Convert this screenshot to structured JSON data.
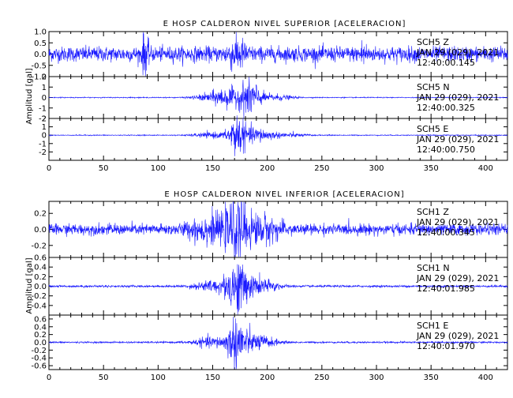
{
  "chart_data": [
    {
      "type": "line",
      "title": "E HOSP CALDERON NIVEL SUPERIOR [ACELERACION]",
      "xlabel": "",
      "ylabel": "Amplitud [gal]",
      "xlim": [
        0,
        420
      ],
      "x_ticks": [
        0,
        50,
        100,
        150,
        200,
        250,
        300,
        350,
        400
      ],
      "x_tick_labels": [
        "0",
        "50",
        "100",
        "150",
        "200",
        "250",
        "300",
        "350",
        "400"
      ],
      "grid": false,
      "series": [
        {
          "name": "SCH5 Z",
          "channel": "SCH5",
          "component": "Z",
          "date": "JAN 29 (029), 2021",
          "time": "12:40:00.145",
          "color": "#1a1aff",
          "ylim": [
            -1.0,
            1.0
          ],
          "y_ticks": [
            -1.0,
            -0.5,
            0.0,
            0.5,
            1.0
          ],
          "y_tick_labels": [
            "-1.0",
            "-0.5",
            "0.0",
            "0.5",
            "1.0"
          ],
          "noise": 0.3,
          "events": [
            {
              "center": 88,
              "width": 2,
              "amp": 0.8
            },
            {
              "center": 172,
              "width": 6,
              "amp": 0.5
            },
            {
              "center": 288,
              "width": 2,
              "amp": 0.45
            }
          ]
        },
        {
          "name": "SCH5 N",
          "channel": "SCH5",
          "component": "N",
          "date": "JAN 29 (029), 2021",
          "time": "12:40:00.325",
          "color": "#1a1aff",
          "ylim": [
            -2,
            2
          ],
          "y_ticks": [
            -2,
            -1,
            0,
            1,
            2
          ],
          "y_tick_labels": [
            "-2",
            "-1",
            "0",
            "1",
            "2"
          ],
          "noise": 0.04,
          "events": [
            {
              "center": 150,
              "width": 12,
              "amp": 0.35
            },
            {
              "center": 165,
              "width": 9,
              "amp": 0.7
            },
            {
              "center": 184,
              "width": 6,
              "amp": 1.7
            },
            {
              "center": 205,
              "width": 12,
              "amp": 0.3
            }
          ]
        },
        {
          "name": "SCH5 E",
          "channel": "SCH5",
          "component": "E",
          "date": "JAN 29 (029), 2021",
          "time": "12:40:00.750",
          "color": "#1a1aff",
          "ylim": [
            -3,
            2
          ],
          "y_ticks": [
            -2,
            -1,
            0,
            1,
            2
          ],
          "y_tick_labels": [
            "-2",
            "-1",
            "0",
            "1",
            "2"
          ],
          "noise": 0.05,
          "events": [
            {
              "center": 150,
              "width": 12,
              "amp": 0.3
            },
            {
              "center": 172,
              "width": 5,
              "amp": 2.1
            },
            {
              "center": 188,
              "width": 10,
              "amp": 0.8
            },
            {
              "center": 215,
              "width": 14,
              "amp": 0.25
            }
          ]
        }
      ]
    },
    {
      "type": "line",
      "title": "E HOSP CALDERON NIVEL INFERIOR [ACELERACION]",
      "xlabel": "",
      "ylabel": "Amplitud [gal]",
      "xlim": [
        0,
        420
      ],
      "x_ticks": [
        0,
        50,
        100,
        150,
        200,
        250,
        300,
        350,
        400
      ],
      "x_tick_labels": [
        "0",
        "50",
        "100",
        "150",
        "200",
        "250",
        "300",
        "350",
        "400"
      ],
      "grid": false,
      "series": [
        {
          "name": "SCH1 Z",
          "channel": "SCH1",
          "component": "Z",
          "date": "JAN 29 (029), 2021",
          "time": "12:40:00.345",
          "color": "#1a1aff",
          "ylim": [
            -0.35,
            0.35
          ],
          "y_ticks": [
            -0.2,
            0.0,
            0.2
          ],
          "y_tick_labels": [
            "-0.2",
            "0.0",
            "0.2"
          ],
          "noise": 0.06,
          "events": [
            {
              "center": 145,
              "width": 12,
              "amp": 0.12
            },
            {
              "center": 172,
              "width": 8,
              "amp": 0.28
            },
            {
              "center": 195,
              "width": 12,
              "amp": 0.12
            }
          ]
        },
        {
          "name": "SCH1 N",
          "channel": "SCH1",
          "component": "N",
          "date": "JAN 29 (029), 2021",
          "time": "12:40:01.985",
          "color": "#1a1aff",
          "ylim": [
            -0.6,
            0.6
          ],
          "y_ticks": [
            -0.4,
            -0.2,
            0.0,
            0.2,
            0.4,
            0.6
          ],
          "y_tick_labels": [
            "-0.4",
            "-0.2",
            "0.0",
            "0.2",
            "0.4",
            "0.6"
          ],
          "noise": 0.02,
          "events": [
            {
              "center": 150,
              "width": 12,
              "amp": 0.1
            },
            {
              "center": 172,
              "width": 7,
              "amp": 0.45
            },
            {
              "center": 192,
              "width": 12,
              "amp": 0.15
            }
          ]
        },
        {
          "name": "SCH1 E",
          "channel": "SCH1",
          "component": "E",
          "date": "JAN 29 (029), 2021",
          "time": "12:40:01.970",
          "color": "#1a1aff",
          "ylim": [
            -0.7,
            0.7
          ],
          "y_ticks": [
            -0.6,
            -0.4,
            -0.2,
            0.0,
            0.2,
            0.4,
            0.6
          ],
          "y_tick_labels": [
            "-0.6",
            "-0.4",
            "-0.2",
            "0.0",
            "0.2",
            "0.4",
            "0.6"
          ],
          "noise": 0.02,
          "events": [
            {
              "center": 150,
              "width": 12,
              "amp": 0.12
            },
            {
              "center": 172,
              "width": 6,
              "amp": 0.55
            },
            {
              "center": 190,
              "width": 12,
              "amp": 0.18
            }
          ]
        }
      ]
    }
  ]
}
